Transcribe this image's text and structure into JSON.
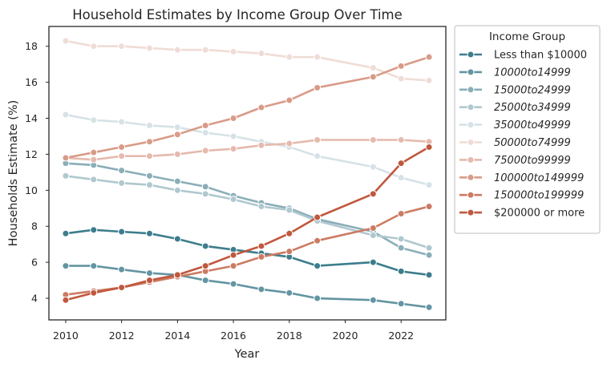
{
  "chart_data": {
    "type": "line",
    "title": "Household Estimates by Income Group Over Time",
    "xlabel": "Year",
    "ylabel": "Households Estimate (%)",
    "xlim": [
      2009.4,
      2023.6
    ],
    "ylim": [
      2.8,
      19.1
    ],
    "xticks": [
      2010,
      2012,
      2014,
      2016,
      2018,
      2020,
      2022
    ],
    "yticks": [
      4,
      6,
      8,
      10,
      12,
      14,
      16,
      18
    ],
    "grid": false,
    "legend": {
      "title": "Income Group",
      "placement": "outside-top-right"
    },
    "x": [
      2010,
      2011,
      2012,
      2013,
      2014,
      2015,
      2016,
      2017,
      2018,
      2019,
      2021,
      2022,
      2023
    ],
    "series": [
      {
        "name": "Less than $10000",
        "color": "#3d7d8c",
        "values": [
          7.6,
          7.8,
          7.7,
          7.6,
          7.3,
          6.9,
          6.7,
          6.5,
          6.3,
          5.8,
          6.0,
          5.5,
          5.3
        ]
      },
      {
        "name": "$10000 to $14999",
        "color": "#6395a2",
        "values": [
          5.8,
          5.8,
          5.6,
          5.4,
          5.3,
          5.0,
          4.8,
          4.5,
          4.3,
          4.0,
          3.9,
          3.7,
          3.5
        ]
      },
      {
        "name": "$15000 to $24999",
        "color": "#8aaeb8",
        "values": [
          11.5,
          11.4,
          11.1,
          10.8,
          10.5,
          10.2,
          9.7,
          9.3,
          9.0,
          8.4,
          7.7,
          6.8,
          6.4
        ]
      },
      {
        "name": "$25000 to $34999",
        "color": "#b0c8cf",
        "values": [
          10.8,
          10.6,
          10.4,
          10.3,
          10.0,
          9.8,
          9.5,
          9.1,
          8.9,
          8.3,
          7.5,
          7.3,
          6.8
        ]
      },
      {
        "name": "$35000 to $49999",
        "color": "#d6e2e6",
        "values": [
          14.2,
          13.9,
          13.8,
          13.6,
          13.5,
          13.2,
          13.0,
          12.7,
          12.4,
          11.9,
          11.3,
          10.7,
          10.3
        ]
      },
      {
        "name": "$50000 to $74999",
        "color": "#f0dcd6",
        "values": [
          18.3,
          18.0,
          18.0,
          17.9,
          17.8,
          17.8,
          17.7,
          17.6,
          17.4,
          17.4,
          16.8,
          16.2,
          16.1
        ]
      },
      {
        "name": "$75000 to $99999",
        "color": "#e5baad",
        "values": [
          11.8,
          11.7,
          11.9,
          11.9,
          12.0,
          12.2,
          12.3,
          12.5,
          12.6,
          12.8,
          12.8,
          12.8,
          12.7
        ]
      },
      {
        "name": "$100000 to $149999",
        "color": "#d99b88",
        "values": [
          11.8,
          12.1,
          12.4,
          12.7,
          13.1,
          13.6,
          14.0,
          14.6,
          15.0,
          15.7,
          16.3,
          16.9,
          17.4
        ]
      },
      {
        "name": "$150000 to $199999",
        "color": "#cc7b63",
        "values": [
          4.2,
          4.4,
          4.6,
          4.9,
          5.2,
          5.5,
          5.8,
          6.3,
          6.6,
          7.2,
          7.9,
          8.7,
          9.1
        ]
      },
      {
        "name": "$200000 or more",
        "color": "#c0583e",
        "values": [
          3.9,
          4.3,
          4.6,
          5.0,
          5.3,
          5.8,
          6.4,
          6.9,
          7.6,
          8.5,
          9.8,
          11.5,
          12.4
        ]
      }
    ]
  },
  "legend_labels": [
    {
      "text": "Less than $10000",
      "math": false
    },
    {
      "text": "10000to14999",
      "math": true
    },
    {
      "text": "15000to24999",
      "math": true
    },
    {
      "text": "25000to34999",
      "math": true
    },
    {
      "text": "35000to49999",
      "math": true
    },
    {
      "text": "50000to74999",
      "math": true
    },
    {
      "text": "75000to99999",
      "math": true
    },
    {
      "text": "100000to149999",
      "math": true
    },
    {
      "text": "150000to199999",
      "math": true
    },
    {
      "text": "$200000 or more",
      "math": false
    }
  ]
}
